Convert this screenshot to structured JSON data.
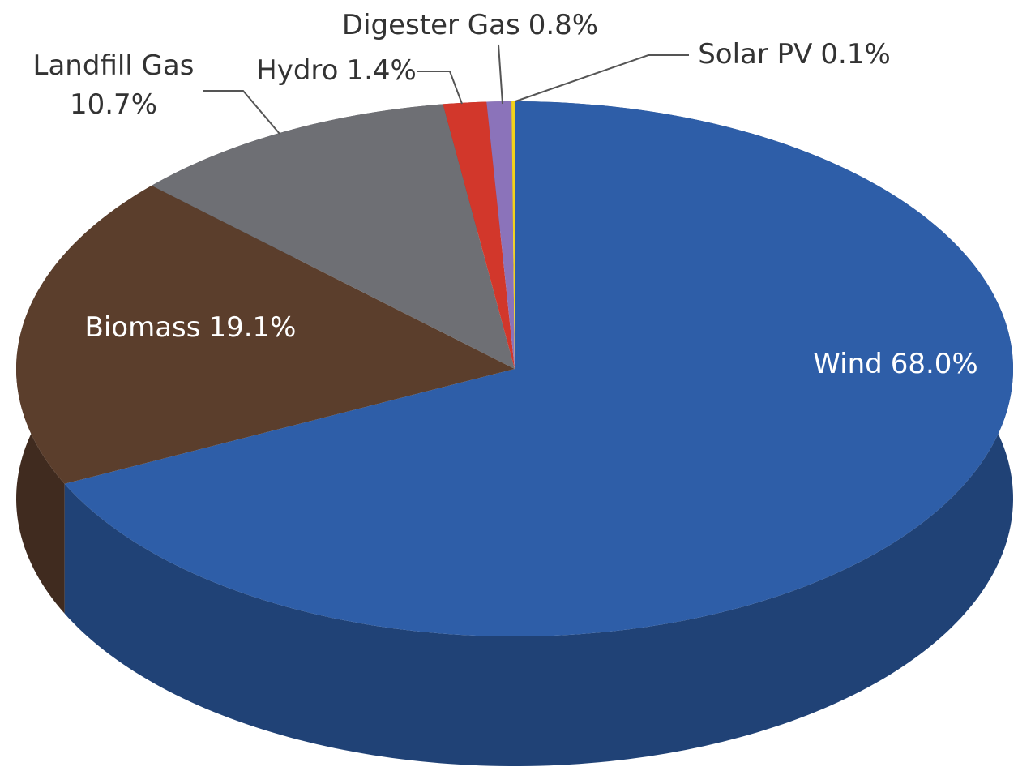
{
  "chart_data": {
    "type": "pie",
    "categories": [
      "Wind",
      "Biomass",
      "Landfill Gas",
      "Hydro",
      "Digester Gas",
      "Solar PV"
    ],
    "values": [
      68.0,
      19.1,
      10.7,
      1.4,
      0.8,
      0.1
    ],
    "value_labels": [
      "68.0%",
      "19.1%",
      "10.7%",
      "1.4%",
      "0.8%",
      "0.1%"
    ],
    "colors": [
      "#2e5ea8",
      "#5b3e2c",
      "#6e6f74",
      "#d2372b",
      "#8b73ba",
      "#f2d21b"
    ]
  }
}
